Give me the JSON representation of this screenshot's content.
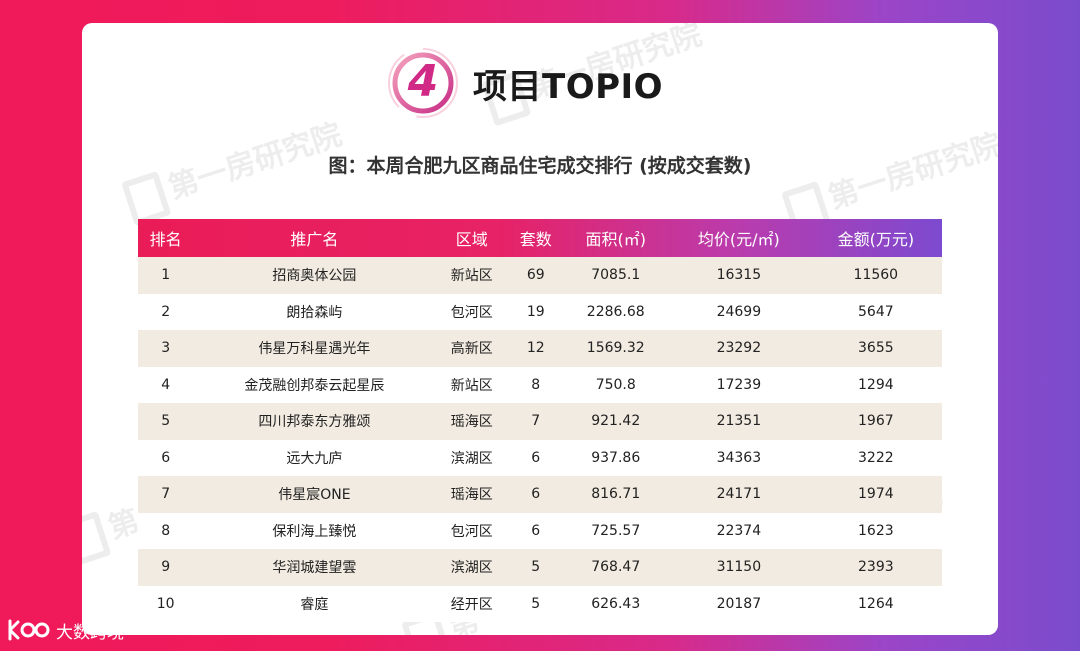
{
  "header": {
    "badge_number": "4",
    "title": "项目TOPIO"
  },
  "subtitle": "图：本周合肥九区商品住宅成交排行 (按成交套数)",
  "watermark": "第一房研究院",
  "colors": {
    "accent_pink": "#ee1c5c",
    "accent_purple": "#7a4ccc",
    "row_stripe": "#f2ebe1"
  },
  "table": {
    "columns": [
      "排名",
      "推广名",
      "区域",
      "套数",
      "面积(㎡)",
      "均价(元/㎡)",
      "金额(万元)"
    ],
    "rows": [
      [
        "1",
        "招商奥体公园",
        "新站区",
        "69",
        "7085.1",
        "16315",
        "11560"
      ],
      [
        "2",
        "朗拾森屿",
        "包河区",
        "19",
        "2286.68",
        "24699",
        "5647"
      ],
      [
        "3",
        "伟星万科星遇光年",
        "高新区",
        "12",
        "1569.32",
        "23292",
        "3655"
      ],
      [
        "4",
        "金茂融创邦泰云起星辰",
        "新站区",
        "8",
        "750.8",
        "17239",
        "1294"
      ],
      [
        "5",
        "四川邦泰东方雅颂",
        "瑶海区",
        "7",
        "921.42",
        "21351",
        "1967"
      ],
      [
        "6",
        "远大九庐",
        "滨湖区",
        "6",
        "937.86",
        "34363",
        "3222"
      ],
      [
        "7",
        "伟星宸ONE",
        "瑶海区",
        "6",
        "816.71",
        "24171",
        "1974"
      ],
      [
        "8",
        "保利海上臻悦",
        "包河区",
        "6",
        "725.57",
        "22374",
        "1623"
      ],
      [
        "9",
        "华润城建望雲",
        "滨湖区",
        "5",
        "768.47",
        "31150",
        "2393"
      ],
      [
        "10",
        "睿庭",
        "经开区",
        "5",
        "626.43",
        "20187",
        "1264"
      ]
    ]
  },
  "footer": {
    "label": "大数跨境",
    "icon": "kuajing-logo-icon"
  }
}
